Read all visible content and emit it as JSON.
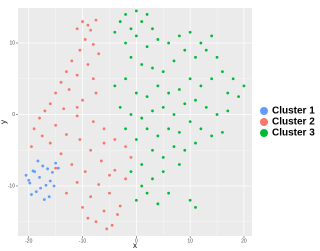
{
  "chart_data": {
    "type": "scatter",
    "xlabel": "x",
    "ylabel": "y",
    "xlim": [
      -22,
      21.5
    ],
    "ylim": [
      -17,
      14.9
    ],
    "xticks": [
      -20,
      -10,
      0,
      10,
      20
    ],
    "yticks": [
      -10,
      0,
      10
    ],
    "minor_xticks": [
      -15,
      -5,
      5,
      15
    ],
    "minor_yticks": [
      -15,
      -5,
      5
    ],
    "grid": true,
    "legend": "right",
    "series": [
      {
        "name": "Cluster 1",
        "color": "#619CFF",
        "x": [
          -20.5,
          -19.8,
          -19.2,
          -18.6,
          -18.0,
          -17.4,
          -16.8,
          -16.2,
          -15.6,
          -15.0,
          -19.5,
          -18.3,
          -17.1,
          -16.0,
          -20.0,
          -17.8,
          -16.5,
          -15.3,
          -18.9,
          -14.5
        ],
        "values": [
          -8.5,
          -9.6,
          -7.9,
          -10.8,
          -8.8,
          -7.2,
          -9.9,
          -11.5,
          -8.1,
          -6.8,
          -11.2,
          -6.5,
          -11.9,
          -9.3,
          -9.2,
          -10.3,
          -7.6,
          -10.0,
          -8.0,
          -7.5
        ]
      },
      {
        "name": "Cluster 2",
        "color": "#F8766D",
        "x": [
          -10,
          -9,
          -8.5,
          -11,
          -7.5,
          -9.5,
          -8,
          -10.5,
          -7,
          -12,
          -9,
          -13,
          -11,
          -14,
          -8,
          -15,
          -12.5,
          -16,
          -10,
          -17,
          -13.5,
          -18,
          -11,
          -19,
          -15,
          -8,
          -17.5,
          -13,
          -6,
          -19.5,
          -16,
          -10.5,
          -4,
          -14,
          -8.5,
          -2,
          -12,
          -6.5,
          -1,
          -15,
          -9.5,
          -4,
          -11,
          -7,
          -2,
          -13,
          -8.5,
          -5,
          -10,
          -6,
          -3,
          -7.5,
          -4.5,
          -9,
          -5.5,
          -3.5,
          -6,
          -11,
          -7.5,
          -5
        ],
        "values": [
          13,
          12.5,
          11.8,
          12,
          13.2,
          10.5,
          9.8,
          9,
          8.5,
          7.5,
          7,
          6,
          5.5,
          4.5,
          5,
          3,
          3.5,
          1.5,
          2,
          0.5,
          0.8,
          -0.5,
          -0.2,
          -2,
          -1.5,
          -1,
          -3,
          -2.8,
          -2,
          -4.5,
          -4,
          -3.5,
          -3.5,
          -5.5,
          -5,
          -4.5,
          -7,
          -6.5,
          -6,
          -7.5,
          -8,
          -7.8,
          -9.5,
          -9.8,
          -9,
          -11,
          -11.5,
          -11,
          -13,
          -13.5,
          -12.8,
          -15,
          -15.5,
          -14.5,
          -16,
          -14,
          -4,
          1,
          3,
          -8.5
        ]
      },
      {
        "name": "Cluster 3",
        "color": "#00BA38",
        "x": [
          -2,
          0,
          -3,
          1,
          2,
          -1,
          3,
          -4,
          0,
          4,
          -2,
          2,
          6,
          8,
          10,
          12,
          14,
          9,
          11,
          13,
          15,
          7,
          -1,
          1,
          3,
          5,
          16,
          18,
          20,
          17,
          19,
          14,
          12,
          10,
          8,
          6,
          4,
          2,
          0,
          -2,
          -4,
          -3,
          -1,
          1,
          3,
          5,
          7,
          9,
          11,
          13,
          15,
          17,
          12,
          10,
          8,
          6,
          4,
          2,
          0,
          -2,
          14,
          16,
          11,
          9,
          7,
          5,
          3,
          1,
          -1,
          3,
          1,
          0,
          2,
          5,
          8,
          10,
          11,
          6,
          4
        ],
        "values": [
          14,
          14.5,
          13,
          13,
          14,
          12,
          12,
          11.5,
          11,
          10.5,
          10,
          9.5,
          10,
          11,
          11.5,
          10,
          11,
          9,
          8,
          9,
          8,
          7.5,
          8,
          7,
          6.5,
          6,
          6,
          5,
          4,
          3,
          2.5,
          5,
          4,
          5,
          3.5,
          3,
          4,
          2.5,
          3,
          5,
          4,
          1,
          0,
          -0.5,
          0.5,
          1,
          0,
          1.5,
          2,
          1,
          0,
          0.5,
          -2,
          -1,
          -2.5,
          -2,
          -3,
          -2,
          -3.5,
          -2,
          -3,
          -2.5,
          -4,
          -5,
          -4.5,
          -6,
          -5,
          -7,
          -8,
          -9,
          -10,
          -12,
          -11,
          -8,
          -7,
          -12,
          -13,
          -11,
          -12.5
        ]
      }
    ]
  }
}
